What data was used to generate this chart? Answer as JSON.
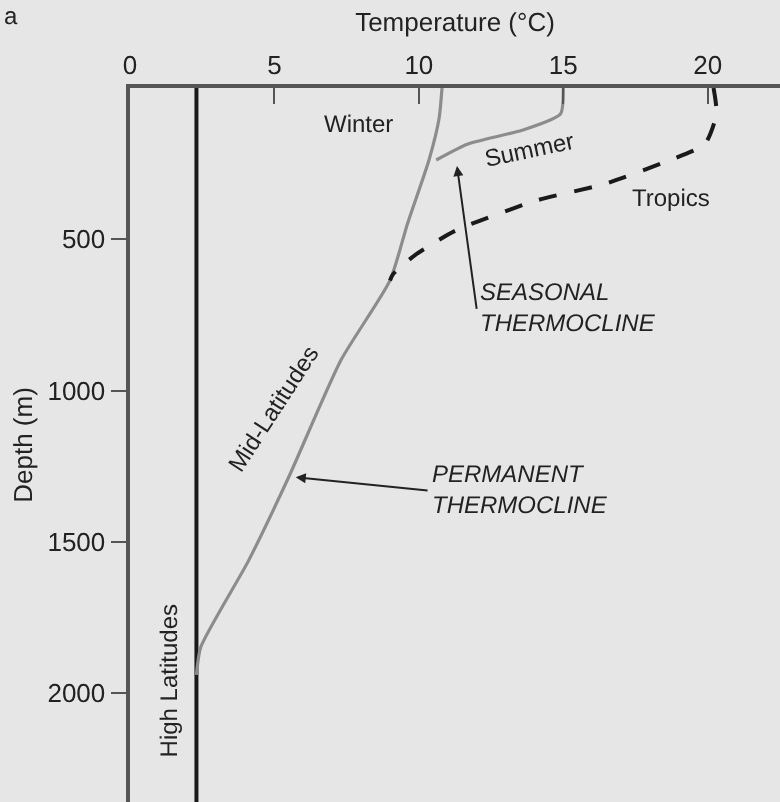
{
  "chart_data": {
    "type": "line",
    "xlabel": "Temperature (°C)",
    "ylabel": "Depth (m)",
    "xlim": [
      0,
      22.5
    ],
    "xticks": [
      0,
      5,
      10,
      15,
      20
    ],
    "ylim": [
      2360,
      0
    ],
    "yticks": [
      500,
      1000,
      1500,
      2000
    ],
    "grid": false,
    "marker": "none",
    "series": [
      {
        "color": "#1a1a1a",
        "line_style": "solid",
        "x": [
          2.3,
          2.3
        ],
        "values": [
          0,
          2360
        ]
      },
      {
        "color": "#8c8c8c",
        "line_style": "solid",
        "x": [
          10.8,
          10.7,
          10.35,
          9.6,
          9.0,
          7.3,
          5.5,
          4.1,
          2.45,
          2.3
        ],
        "values": [
          0,
          100,
          238,
          450,
          636,
          900,
          1285,
          1563,
          1848,
          1940
        ]
      },
      {
        "color": "#8c8c8c",
        "line_style": "solid",
        "x": [
          15.0,
          14.9,
          13.6,
          11.7,
          10.6
        ],
        "values": [
          0,
          86,
          139,
          185,
          238
        ]
      },
      {
        "color": "#1a1a1a",
        "line_style": "dashed",
        "x": [
          20.2,
          20.3,
          19.9,
          18.7,
          16.4,
          14.1,
          11.3,
          9.9,
          9.1,
          9.0
        ],
        "values": [
          0,
          86,
          185,
          238,
          318,
          371,
          470,
          550,
          616,
          636
        ]
      }
    ],
    "annotations": [
      "a",
      "Winter",
      "Summer",
      "Tropics",
      "Mid-Latitudes",
      "High Latitudes",
      {
        "text": "SEASONAL THERMOCLINE",
        "x": 11.3,
        "y": 245
      },
      {
        "text": "PERMANENT THERMOCLINE",
        "x": 5.6,
        "y": 1285
      }
    ]
  }
}
